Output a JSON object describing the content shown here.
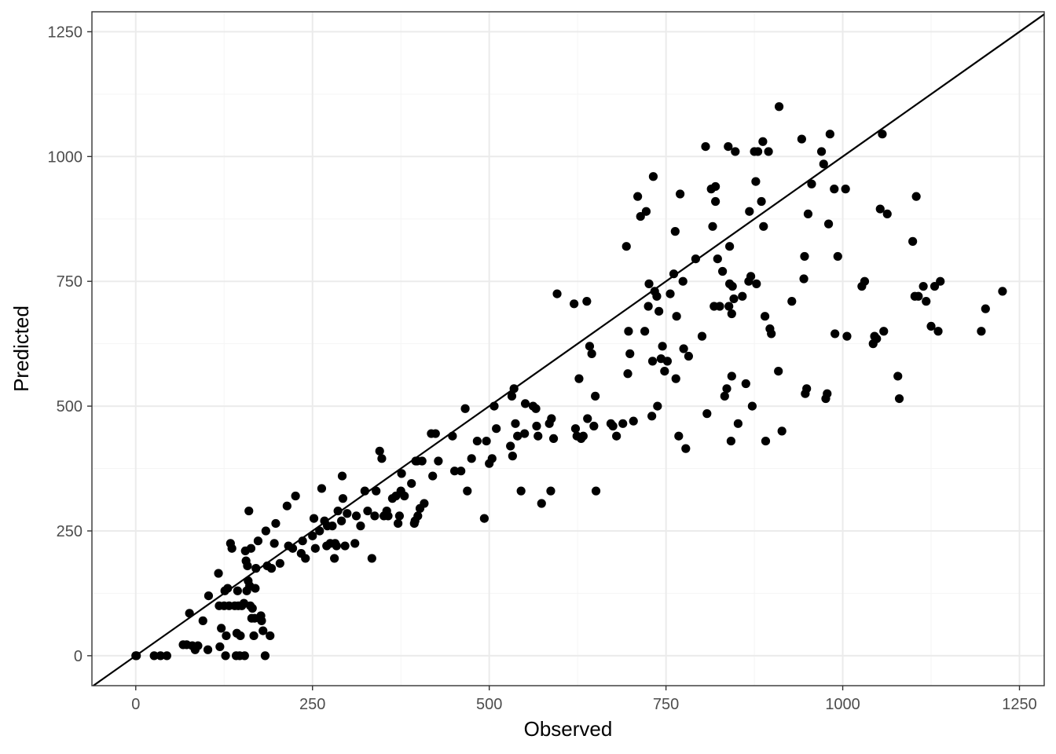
{
  "chart_data": {
    "type": "scatter",
    "xlabel": "Observed",
    "ylabel": "Predicted",
    "xlim": [
      -62,
      1285
    ],
    "ylim": [
      -60,
      1290
    ],
    "x_ticks": [
      0,
      250,
      500,
      750,
      1000,
      1250
    ],
    "y_ticks": [
      0,
      250,
      500,
      750,
      1000,
      1250
    ],
    "grid": true,
    "reference_line": "y = x",
    "colors": {
      "point": "#000000",
      "panel_border": "#333333",
      "grid_major": "#ebebeb",
      "grid_minor": "#f5f5f5"
    },
    "points": [
      [
        0,
        0
      ],
      [
        1,
        0
      ],
      [
        26,
        0
      ],
      [
        35,
        0
      ],
      [
        44,
        0
      ],
      [
        67,
        22
      ],
      [
        72,
        22
      ],
      [
        76,
        85
      ],
      [
        80,
        20
      ],
      [
        84,
        12
      ],
      [
        88,
        20
      ],
      [
        95,
        70
      ],
      [
        102,
        12
      ],
      [
        103,
        120
      ],
      [
        117,
        165
      ],
      [
        118,
        100
      ],
      [
        119,
        18
      ],
      [
        121,
        55
      ],
      [
        125,
        100
      ],
      [
        126,
        130
      ],
      [
        127,
        0
      ],
      [
        128,
        40
      ],
      [
        130,
        135
      ],
      [
        132,
        100
      ],
      [
        134,
        225
      ],
      [
        136,
        215
      ],
      [
        140,
        100
      ],
      [
        142,
        0
      ],
      [
        143,
        45
      ],
      [
        144,
        130
      ],
      [
        145,
        100
      ],
      [
        147,
        0
      ],
      [
        148,
        40
      ],
      [
        150,
        100
      ],
      [
        153,
        105
      ],
      [
        154,
        0
      ],
      [
        155,
        210
      ],
      [
        156,
        190
      ],
      [
        157,
        130
      ],
      [
        158,
        180
      ],
      [
        159,
        150
      ],
      [
        160,
        290
      ],
      [
        161,
        140
      ],
      [
        162,
        100
      ],
      [
        163,
        215
      ],
      [
        164,
        75
      ],
      [
        165,
        95
      ],
      [
        167,
        40
      ],
      [
        168,
        75
      ],
      [
        169,
        135
      ],
      [
        170,
        175
      ],
      [
        173,
        230
      ],
      [
        175,
        75
      ],
      [
        177,
        80
      ],
      [
        178,
        70
      ],
      [
        180,
        50
      ],
      [
        183,
        0
      ],
      [
        184,
        250
      ],
      [
        186,
        180
      ],
      [
        190,
        40
      ],
      [
        192,
        175
      ],
      [
        196,
        225
      ],
      [
        198,
        265
      ],
      [
        204,
        185
      ],
      [
        214,
        300
      ],
      [
        216,
        220
      ],
      [
        222,
        215
      ],
      [
        226,
        320
      ],
      [
        234,
        205
      ],
      [
        236,
        230
      ],
      [
        240,
        195
      ],
      [
        250,
        240
      ],
      [
        252,
        275
      ],
      [
        254,
        215
      ],
      [
        260,
        250
      ],
      [
        263,
        335
      ],
      [
        267,
        270
      ],
      [
        270,
        220
      ],
      [
        271,
        260
      ],
      [
        275,
        225
      ],
      [
        278,
        260
      ],
      [
        281,
        195
      ],
      [
        282,
        225
      ],
      [
        284,
        220
      ],
      [
        286,
        290
      ],
      [
        291,
        270
      ],
      [
        292,
        360
      ],
      [
        293,
        315
      ],
      [
        296,
        220
      ],
      [
        299,
        285
      ],
      [
        310,
        225
      ],
      [
        312,
        280
      ],
      [
        318,
        260
      ],
      [
        324,
        330
      ],
      [
        328,
        290
      ],
      [
        334,
        195
      ],
      [
        338,
        280
      ],
      [
        340,
        330
      ],
      [
        345,
        410
      ],
      [
        348,
        395
      ],
      [
        351,
        280
      ],
      [
        355,
        290
      ],
      [
        357,
        280
      ],
      [
        363,
        315
      ],
      [
        368,
        320
      ],
      [
        371,
        265
      ],
      [
        373,
        280
      ],
      [
        375,
        330
      ],
      [
        376,
        365
      ],
      [
        380,
        320
      ],
      [
        390,
        345
      ],
      [
        394,
        265
      ],
      [
        395,
        270
      ],
      [
        396,
        390
      ],
      [
        398,
        390
      ],
      [
        399,
        280
      ],
      [
        402,
        295
      ],
      [
        405,
        390
      ],
      [
        408,
        305
      ],
      [
        418,
        445
      ],
      [
        420,
        360
      ],
      [
        424,
        445
      ],
      [
        428,
        390
      ],
      [
        448,
        440
      ],
      [
        451,
        370
      ],
      [
        460,
        370
      ],
      [
        466,
        495
      ],
      [
        469,
        330
      ],
      [
        475,
        395
      ],
      [
        483,
        430
      ],
      [
        493,
        275
      ],
      [
        496,
        430
      ],
      [
        500,
        385
      ],
      [
        504,
        395
      ],
      [
        507,
        500
      ],
      [
        510,
        455
      ],
      [
        530,
        420
      ],
      [
        533,
        400
      ],
      [
        535,
        535
      ],
      [
        532,
        520
      ],
      [
        537,
        465
      ],
      [
        540,
        440
      ],
      [
        545,
        330
      ],
      [
        550,
        445
      ],
      [
        551,
        505
      ],
      [
        562,
        500
      ],
      [
        566,
        495
      ],
      [
        567,
        460
      ],
      [
        569,
        440
      ],
      [
        574,
        305
      ],
      [
        585,
        465
      ],
      [
        587,
        330
      ],
      [
        588,
        475
      ],
      [
        591,
        435
      ],
      [
        596,
        725
      ],
      [
        620,
        705
      ],
      [
        622,
        455
      ],
      [
        624,
        440
      ],
      [
        627,
        555
      ],
      [
        630,
        435
      ],
      [
        633,
        440
      ],
      [
        638,
        710
      ],
      [
        639,
        475
      ],
      [
        642,
        620
      ],
      [
        645,
        605
      ],
      [
        648,
        460
      ],
      [
        650,
        520
      ],
      [
        651,
        330
      ],
      [
        672,
        465
      ],
      [
        675,
        460
      ],
      [
        680,
        440
      ],
      [
        689,
        465
      ],
      [
        694,
        820
      ],
      [
        696,
        565
      ],
      [
        697,
        650
      ],
      [
        699,
        605
      ],
      [
        704,
        470
      ],
      [
        710,
        920
      ],
      [
        714,
        880
      ],
      [
        720,
        650
      ],
      [
        722,
        890
      ],
      [
        725,
        700
      ],
      [
        726,
        745
      ],
      [
        730,
        480
      ],
      [
        731,
        590
      ],
      [
        732,
        960
      ],
      [
        734,
        730
      ],
      [
        737,
        720
      ],
      [
        738,
        500
      ],
      [
        740,
        690
      ],
      [
        743,
        595
      ],
      [
        745,
        620
      ],
      [
        748,
        570
      ],
      [
        752,
        590
      ],
      [
        756,
        725
      ],
      [
        761,
        765
      ],
      [
        763,
        850
      ],
      [
        764,
        555
      ],
      [
        765,
        680
      ],
      [
        768,
        440
      ],
      [
        770,
        925
      ],
      [
        774,
        750
      ],
      [
        775,
        615
      ],
      [
        778,
        415
      ],
      [
        782,
        600
      ],
      [
        792,
        795
      ],
      [
        801,
        640
      ],
      [
        806,
        1020
      ],
      [
        808,
        485
      ],
      [
        814,
        935
      ],
      [
        816,
        860
      ],
      [
        818,
        700
      ],
      [
        820,
        940
      ],
      [
        820,
        910
      ],
      [
        823,
        795
      ],
      [
        826,
        700
      ],
      [
        830,
        770
      ],
      [
        833,
        520
      ],
      [
        836,
        535
      ],
      [
        838,
        1020
      ],
      [
        839,
        700
      ],
      [
        840,
        745
      ],
      [
        840,
        820
      ],
      [
        842,
        430
      ],
      [
        843,
        560
      ],
      [
        843,
        685
      ],
      [
        844,
        740
      ],
      [
        846,
        715
      ],
      [
        848,
        1010
      ],
      [
        852,
        465
      ],
      [
        858,
        720
      ],
      [
        863,
        545
      ],
      [
        867,
        750
      ],
      [
        868,
        890
      ],
      [
        870,
        760
      ],
      [
        872,
        500
      ],
      [
        875,
        1010
      ],
      [
        877,
        950
      ],
      [
        878,
        745
      ],
      [
        880,
        1010
      ],
      [
        885,
        910
      ],
      [
        887,
        1030
      ],
      [
        888,
        860
      ],
      [
        890,
        680
      ],
      [
        891,
        430
      ],
      [
        895,
        1010
      ],
      [
        897,
        655
      ],
      [
        899,
        645
      ],
      [
        909,
        570
      ],
      [
        910,
        1100
      ],
      [
        914,
        450
      ],
      [
        928,
        710
      ],
      [
        942,
        1035
      ],
      [
        945,
        755
      ],
      [
        946,
        800
      ],
      [
        947,
        525
      ],
      [
        949,
        535
      ],
      [
        951,
        885
      ],
      [
        956,
        945
      ],
      [
        970,
        1010
      ],
      [
        973,
        985
      ],
      [
        976,
        515
      ],
      [
        978,
        525
      ],
      [
        980,
        865
      ],
      [
        982,
        1045
      ],
      [
        988,
        935
      ],
      [
        989,
        645
      ],
      [
        993,
        800
      ],
      [
        1004,
        935
      ],
      [
        1006,
        640
      ],
      [
        1027,
        740
      ],
      [
        1031,
        750
      ],
      [
        1043,
        625
      ],
      [
        1045,
        640
      ],
      [
        1048,
        635
      ],
      [
        1053,
        895
      ],
      [
        1056,
        1045
      ],
      [
        1058,
        650
      ],
      [
        1063,
        885
      ],
      [
        1078,
        560
      ],
      [
        1080,
        515
      ],
      [
        1099,
        830
      ],
      [
        1102,
        720
      ],
      [
        1104,
        920
      ],
      [
        1107,
        720
      ],
      [
        1114,
        740
      ],
      [
        1118,
        710
      ],
      [
        1125,
        660
      ],
      [
        1130,
        740
      ],
      [
        1135,
        650
      ],
      [
        1138,
        750
      ],
      [
        1196,
        650
      ],
      [
        1202,
        695
      ],
      [
        1226,
        730
      ]
    ]
  }
}
